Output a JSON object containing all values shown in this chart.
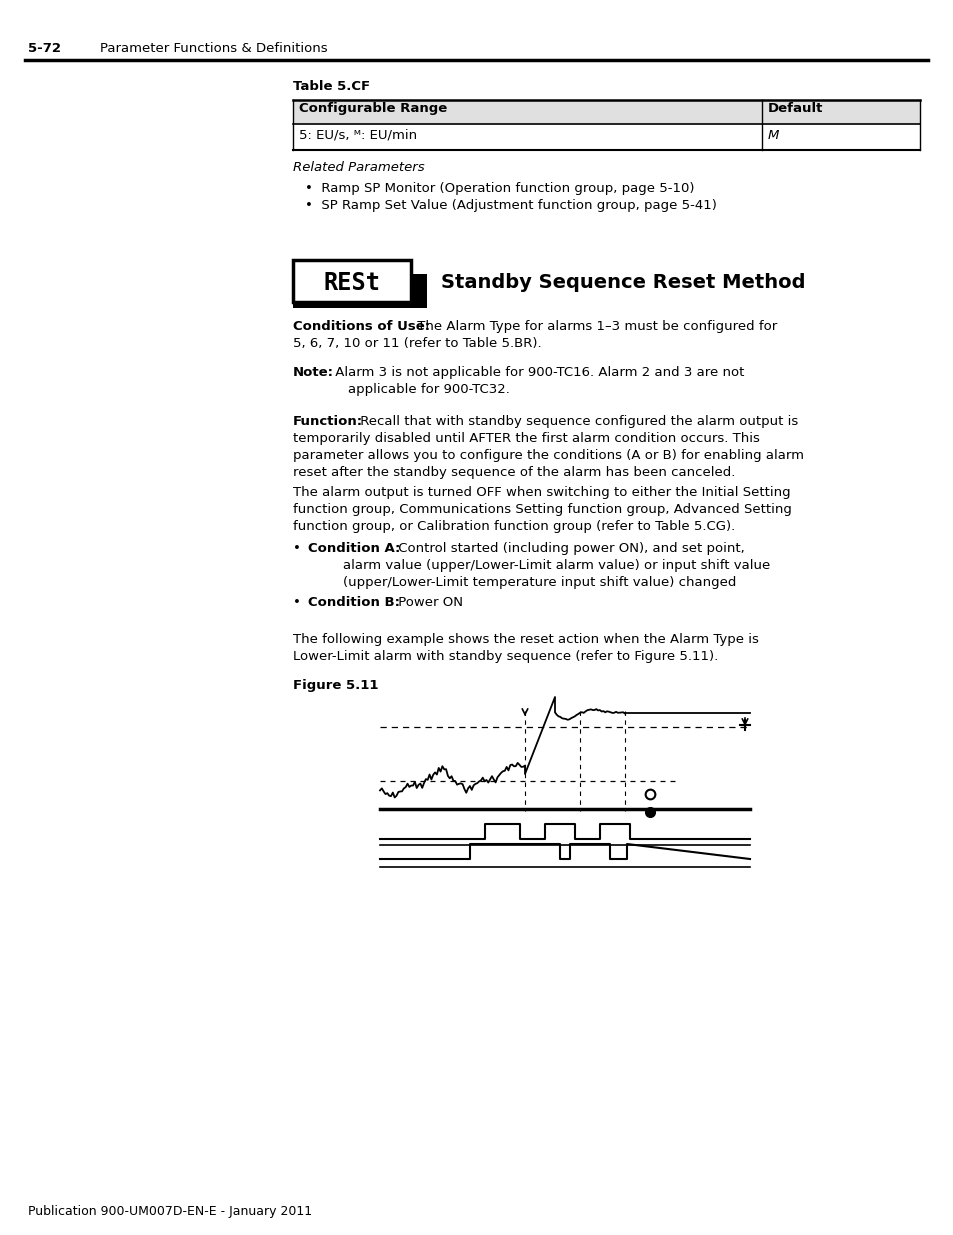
{
  "page_header_number": "5-72",
  "page_header_text": "Parameter Functions & Definitions",
  "table_title": "Table 5.CF",
  "table_col1_header": "Configurable Range",
  "table_col2_header": "Default",
  "table_col1_value": "5: EU/s, ᴹ: EU/min",
  "table_col2_value": "M",
  "section_italic_title": "Related Parameters",
  "bullet1": "Ramp SP Monitor (Operation function group, page 5-10)",
  "bullet2": "SP Ramp Set Value (Adjustment function group, page 5-41)",
  "display_text": "RESt",
  "section_title": "Standby Sequence Reset Method",
  "footer_text": "Publication 900-UM007D-EN-E - January 2011",
  "bg_color": "#ffffff"
}
